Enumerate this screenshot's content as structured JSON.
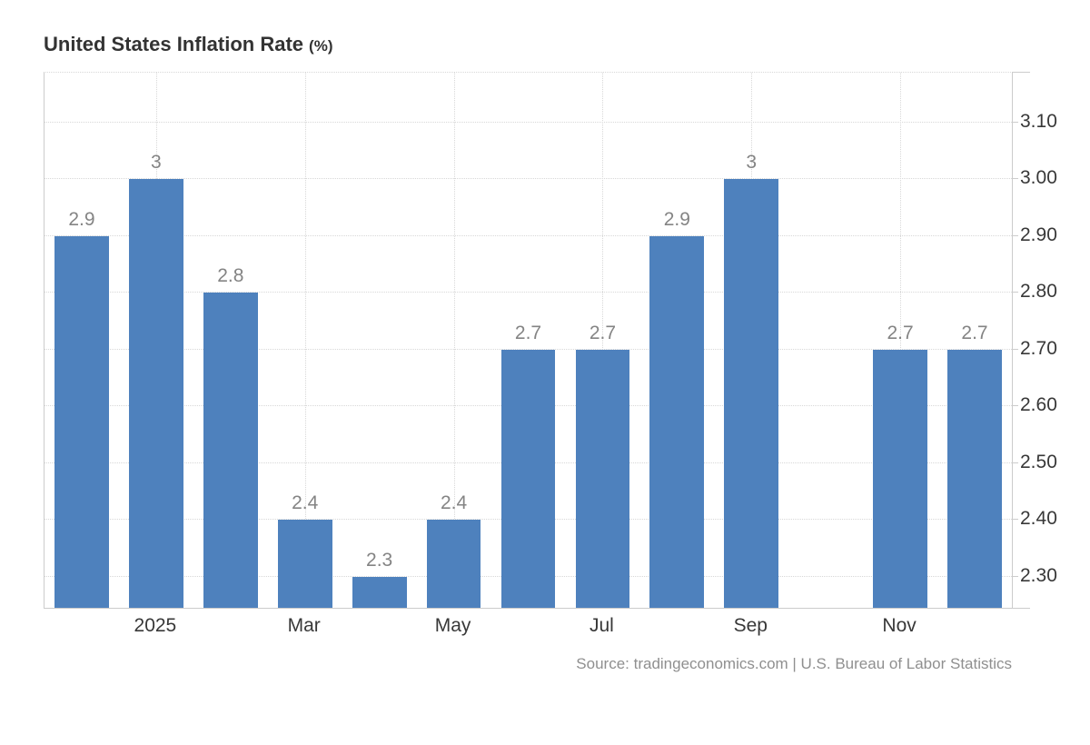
{
  "header": {
    "title": "United States Inflation Rate",
    "unit": "(%)"
  },
  "footer": {
    "source": "Source: tradingeconomics.com | U.S. Bureau of Labor Statistics"
  },
  "colors": {
    "bar": "#4e81bd",
    "gridline": "#d8d8d8",
    "axis_line": "#cccccc",
    "title": "#333333",
    "axis_label": "#383838",
    "bar_label": "#848484",
    "source_text": "#8f8f8f",
    "background": "#ffffff"
  },
  "chart_data": {
    "type": "bar",
    "title": "United States Inflation Rate (%)",
    "xlabel": "",
    "ylabel": "",
    "slots": 13,
    "values": [
      2.9,
      3,
      2.8,
      2.4,
      2.3,
      2.4,
      2.7,
      2.7,
      2.9,
      3,
      null,
      2.7,
      2.7
    ],
    "bar_value_labels": [
      "2.9",
      "3",
      "2.8",
      "2.4",
      "2.3",
      "2.4",
      "2.7",
      "2.7",
      "2.9",
      "3",
      "",
      "2.7",
      "2.7"
    ],
    "x_ticks": [
      {
        "slot": 2,
        "label": "2025"
      },
      {
        "slot": 4,
        "label": "Mar"
      },
      {
        "slot": 6,
        "label": "May"
      },
      {
        "slot": 8,
        "label": "Jul"
      },
      {
        "slot": 10,
        "label": "Sep"
      },
      {
        "slot": 12,
        "label": "Nov"
      }
    ],
    "y_ticks": [
      {
        "value": 3.1,
        "label": "3.10"
      },
      {
        "value": 3.0,
        "label": "3.00"
      },
      {
        "value": 2.9,
        "label": "2.90"
      },
      {
        "value": 2.8,
        "label": "2.80"
      },
      {
        "value": 2.7,
        "label": "2.70"
      },
      {
        "value": 2.6,
        "label": "2.60"
      },
      {
        "value": 2.5,
        "label": "2.50"
      },
      {
        "value": 2.4,
        "label": "2.40"
      },
      {
        "value": 2.3,
        "label": "2.30"
      }
    ],
    "ylim": [
      2.245,
      3.188
    ],
    "grid": "dotted",
    "legend": "none",
    "y_axis_side": "right",
    "missing_slot_index": 10
  }
}
